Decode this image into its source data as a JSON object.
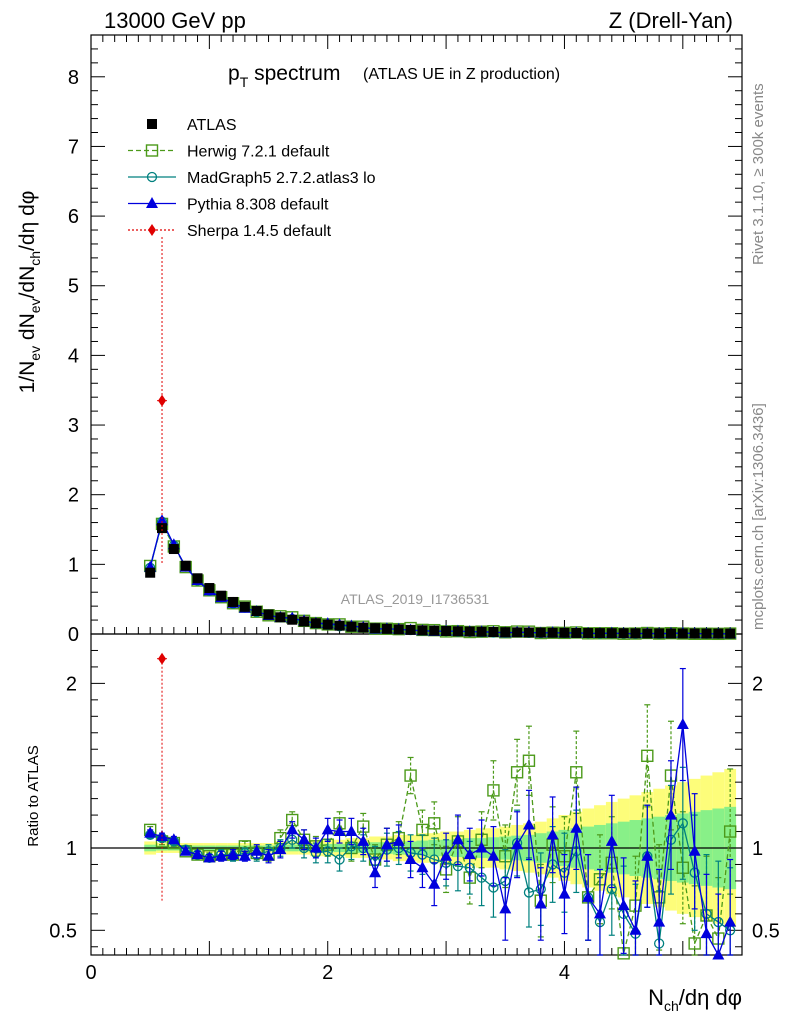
{
  "header": {
    "left": "13000 GeV pp",
    "right": "Z (Drell-Yan)"
  },
  "title": {
    "main": "p",
    "main_sub": "T",
    "main_rest": " spectrum",
    "extra": "(ATLAS UE in Z production)"
  },
  "side_labels": {
    "rivet": "Rivet 3.1.10, ≥ 300k events",
    "mcplots": "mcplots.cern.ch [arXiv:1306.3436]"
  },
  "analysis_id": "ATLAS_2019_I1736531",
  "colors": {
    "atlas": "#000000",
    "herwig": "#4c9a1a",
    "madgraph": "#00807f",
    "pythia": "#0000dd",
    "sherpa": "#e00000",
    "band_outer": "#fdfd7a",
    "band_inner": "#88f088"
  },
  "legend": [
    {
      "key": "atlas",
      "label": "ATLAS"
    },
    {
      "key": "herwig",
      "label": "Herwig 7.2.1 default"
    },
    {
      "key": "madgraph",
      "label": "MadGraph5 2.7.2.atlas3 lo"
    },
    {
      "key": "pythia",
      "label": "Pythia 8.308 default"
    },
    {
      "key": "sherpa",
      "label": "Sherpa 1.4.5 default"
    }
  ],
  "chart_data": {
    "type": "scatter",
    "xlabel": "N_ch/dη dφ",
    "xlabel_parts": {
      "a": "N",
      "sub": "ch",
      "b": "/dη dφ"
    },
    "ylabel_main_parts": [
      "1/N",
      "ev",
      " dN",
      "ev",
      "/dN",
      "ch",
      "/dη dφ"
    ],
    "ylabel_ratio": "Ratio to ATLAS",
    "xlim": [
      0,
      5.5
    ],
    "ylim_main": [
      0,
      8.6
    ],
    "ylim_ratio": [
      0.35,
      2.3
    ],
    "x_ticks": [
      0,
      2,
      4
    ],
    "y_ticks_main": [
      0,
      1,
      2,
      3,
      4,
      5,
      6,
      7,
      8
    ],
    "y_ticks_ratio": [
      0.5,
      1,
      2
    ],
    "x": [
      0.5,
      0.6,
      0.7,
      0.8,
      0.9,
      1.0,
      1.1,
      1.2,
      1.3,
      1.4,
      1.5,
      1.6,
      1.7,
      1.8,
      1.9,
      2.0,
      2.1,
      2.2,
      2.3,
      2.4,
      2.5,
      2.6,
      2.7,
      2.8,
      2.9,
      3.0,
      3.1,
      3.2,
      3.3,
      3.4,
      3.5,
      3.6,
      3.7,
      3.8,
      3.9,
      4.0,
      4.1,
      4.2,
      4.3,
      4.4,
      4.5,
      4.6,
      4.7,
      4.8,
      4.9,
      5.0,
      5.1,
      5.2,
      5.3,
      5.4
    ],
    "atlas": [
      0.88,
      1.52,
      1.22,
      0.98,
      0.8,
      0.66,
      0.55,
      0.46,
      0.39,
      0.33,
      0.28,
      0.24,
      0.205,
      0.18,
      0.155,
      0.135,
      0.12,
      0.105,
      0.093,
      0.083,
      0.074,
      0.066,
      0.059,
      0.053,
      0.048,
      0.043,
      0.039,
      0.035,
      0.032,
      0.029,
      0.026,
      0.024,
      0.022,
      0.02,
      0.018,
      0.017,
      0.015,
      0.014,
      0.013,
      0.012,
      0.011,
      0.01,
      0.009,
      0.0085,
      0.008,
      0.0075,
      0.007,
      0.0065,
      0.006,
      0.0055
    ],
    "band_outer": [
      0.04,
      0.03,
      0.03,
      0.03,
      0.03,
      0.03,
      0.03,
      0.03,
      0.03,
      0.03,
      0.03,
      0.04,
      0.04,
      0.04,
      0.05,
      0.05,
      0.05,
      0.06,
      0.06,
      0.07,
      0.07,
      0.08,
      0.08,
      0.09,
      0.09,
      0.1,
      0.1,
      0.11,
      0.12,
      0.12,
      0.13,
      0.14,
      0.15,
      0.16,
      0.18,
      0.2,
      0.22,
      0.24,
      0.26,
      0.28,
      0.3,
      0.32,
      0.34,
      0.36,
      0.38,
      0.4,
      0.42,
      0.44,
      0.46,
      0.48
    ],
    "band_inner": [
      0.02,
      0.015,
      0.015,
      0.015,
      0.015,
      0.015,
      0.015,
      0.015,
      0.015,
      0.015,
      0.015,
      0.02,
      0.02,
      0.02,
      0.025,
      0.025,
      0.025,
      0.03,
      0.03,
      0.035,
      0.035,
      0.04,
      0.04,
      0.045,
      0.05,
      0.05,
      0.055,
      0.06,
      0.06,
      0.065,
      0.07,
      0.075,
      0.08,
      0.09,
      0.1,
      0.11,
      0.12,
      0.13,
      0.14,
      0.15,
      0.16,
      0.17,
      0.18,
      0.19,
      0.2,
      0.21,
      0.22,
      0.23,
      0.24,
      0.25
    ],
    "series": [
      {
        "key": "herwig",
        "name": "Herwig 7.2.1 default",
        "marker": "square-open",
        "dash": true,
        "ratio": [
          1.11,
          1.04,
          1.03,
          0.98,
          0.96,
          0.95,
          0.96,
          0.96,
          1.01,
          0.97,
          0.96,
          1.06,
          1.17,
          1.05,
          1.01,
          1.02,
          1.15,
          1.0,
          1.13,
          0.93,
          1.02,
          1.06,
          1.44,
          1.11,
          1.15,
          0.87,
          1.04,
          0.82,
          1.05,
          1.35,
          0.95,
          1.46,
          1.53,
          0.68,
          1.02,
          0.95,
          1.46,
          0.7,
          0.81,
          0.91,
          0.36,
          0.65,
          1.56,
          0.7,
          1.44,
          0.88,
          0.42,
          0.59,
          0.45,
          1.1
        ],
        "err": [
          0.02,
          0.02,
          0.02,
          0.02,
          0.02,
          0.02,
          0.03,
          0.03,
          0.03,
          0.04,
          0.04,
          0.05,
          0.05,
          0.06,
          0.06,
          0.07,
          0.07,
          0.08,
          0.08,
          0.09,
          0.1,
          0.1,
          0.11,
          0.12,
          0.13,
          0.14,
          0.15,
          0.16,
          0.17,
          0.18,
          0.19,
          0.2,
          0.21,
          0.22,
          0.23,
          0.24,
          0.25,
          0.26,
          0.27,
          0.28,
          0.29,
          0.3,
          0.31,
          0.32,
          0.33,
          0.34,
          0.35,
          0.36,
          0.37,
          0.38
        ]
      },
      {
        "key": "madgraph",
        "name": "MadGraph5 2.7.2.atlas3 lo",
        "marker": "circle-open",
        "dash": false,
        "ratio": [
          1.08,
          1.06,
          1.04,
          0.99,
          0.96,
          0.94,
          0.96,
          0.95,
          0.97,
          0.96,
          0.98,
          1.0,
          1.05,
          1.0,
          0.97,
          0.98,
          0.93,
          1.01,
          1.0,
          0.92,
          0.99,
          1.0,
          0.97,
          0.96,
          0.93,
          0.91,
          0.89,
          0.88,
          0.82,
          0.76,
          0.8,
          1.03,
          0.73,
          0.75,
          0.9,
          0.85,
          0.98,
          0.7,
          0.55,
          0.75,
          0.6,
          0.48,
          0.95,
          0.42,
          1.05,
          1.15,
          0.85,
          0.6,
          0.55,
          0.5
        ],
        "err": [
          0.02,
          0.02,
          0.02,
          0.02,
          0.02,
          0.02,
          0.03,
          0.03,
          0.03,
          0.04,
          0.04,
          0.05,
          0.05,
          0.06,
          0.06,
          0.07,
          0.07,
          0.08,
          0.08,
          0.09,
          0.1,
          0.1,
          0.11,
          0.12,
          0.13,
          0.14,
          0.15,
          0.16,
          0.17,
          0.18,
          0.19,
          0.2,
          0.21,
          0.22,
          0.23,
          0.24,
          0.25,
          0.26,
          0.27,
          0.28,
          0.29,
          0.3,
          0.31,
          0.32,
          0.33,
          0.34,
          0.35,
          0.36,
          0.37,
          0.38
        ]
      },
      {
        "key": "pythia",
        "name": "Pythia 8.308 default",
        "marker": "triangle",
        "dash": false,
        "ratio": [
          1.09,
          1.07,
          1.05,
          0.98,
          0.96,
          0.94,
          0.95,
          0.96,
          0.95,
          0.98,
          0.95,
          0.99,
          1.11,
          1.05,
          1.0,
          1.11,
          1.1,
          1.1,
          1.04,
          0.85,
          1.02,
          1.04,
          0.93,
          0.88,
          0.78,
          0.95,
          1.05,
          0.96,
          1.0,
          0.95,
          0.63,
          1.02,
          1.14,
          0.66,
          1.08,
          0.72,
          1.12,
          0.7,
          0.6,
          1.04,
          0.65,
          0.5,
          0.95,
          0.55,
          1.2,
          1.75,
          0.98,
          0.48,
          0.35,
          0.55
        ],
        "err": [
          0.02,
          0.02,
          0.02,
          0.02,
          0.02,
          0.02,
          0.03,
          0.03,
          0.03,
          0.04,
          0.04,
          0.05,
          0.05,
          0.06,
          0.06,
          0.07,
          0.07,
          0.08,
          0.08,
          0.09,
          0.1,
          0.1,
          0.11,
          0.12,
          0.13,
          0.14,
          0.15,
          0.16,
          0.17,
          0.18,
          0.19,
          0.2,
          0.21,
          0.22,
          0.23,
          0.24,
          0.25,
          0.26,
          0.27,
          0.28,
          0.29,
          0.3,
          0.31,
          0.32,
          0.33,
          0.34,
          0.35,
          0.36,
          0.37,
          0.38
        ]
      }
    ],
    "sherpa_points": [
      {
        "x": 0.6,
        "y": 3.35,
        "ratio": 2.15,
        "err_lo": 2.35,
        "err_hi": 2.35,
        "ratio_err_lo": 1.48
      }
    ]
  }
}
